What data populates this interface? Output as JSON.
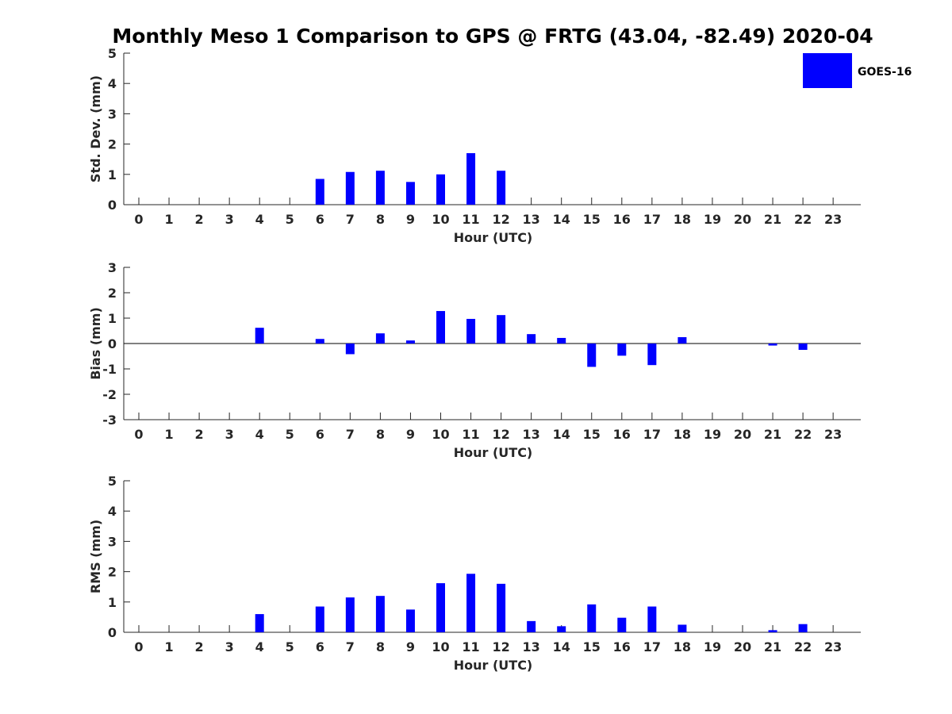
{
  "title": "Monthly Meso 1 Comparison to GPS @ FRTG (43.04, -82.49) 2020-04",
  "legend": {
    "label": "GOES-16",
    "color": "#0000ff",
    "placement": "top-right"
  },
  "chart_data": [
    {
      "type": "bar",
      "ylabel": "Std. Dev. (mm)",
      "xlabel": "Hour (UTC)",
      "ylim": [
        0,
        5
      ],
      "yticks": [
        0,
        1,
        2,
        3,
        4,
        5
      ],
      "categories": [
        "0",
        "1",
        "2",
        "3",
        "4",
        "5",
        "6",
        "7",
        "8",
        "9",
        "10",
        "11",
        "12",
        "13",
        "14",
        "15",
        "16",
        "17",
        "18",
        "19",
        "20",
        "21",
        "22",
        "23"
      ],
      "series": [
        {
          "name": "GOES-16",
          "color": "#0000ff",
          "values": [
            null,
            null,
            null,
            null,
            null,
            null,
            0.85,
            1.08,
            1.12,
            0.75,
            1.0,
            1.7,
            1.12,
            null,
            null,
            null,
            null,
            null,
            null,
            null,
            null,
            null,
            null,
            null
          ]
        }
      ]
    },
    {
      "type": "bar",
      "ylabel": "Bias (mm)",
      "xlabel": "Hour (UTC)",
      "ylim": [
        -3,
        3
      ],
      "yticks": [
        -3,
        -2,
        -1,
        0,
        1,
        2,
        3
      ],
      "categories": [
        "0",
        "1",
        "2",
        "3",
        "4",
        "5",
        "6",
        "7",
        "8",
        "9",
        "10",
        "11",
        "12",
        "13",
        "14",
        "15",
        "16",
        "17",
        "18",
        "19",
        "20",
        "21",
        "22",
        "23"
      ],
      "series": [
        {
          "name": "GOES-16",
          "color": "#0000ff",
          "values": [
            null,
            null,
            null,
            null,
            0.62,
            null,
            0.18,
            -0.42,
            0.4,
            0.12,
            1.28,
            0.97,
            1.12,
            0.37,
            0.22,
            -0.92,
            -0.48,
            -0.85,
            0.25,
            null,
            null,
            -0.08,
            -0.25,
            null
          ]
        }
      ]
    },
    {
      "type": "bar",
      "ylabel": "RMS (mm)",
      "xlabel": "Hour (UTC)",
      "ylim": [
        0,
        5
      ],
      "yticks": [
        0,
        1,
        2,
        3,
        4,
        5
      ],
      "categories": [
        "0",
        "1",
        "2",
        "3",
        "4",
        "5",
        "6",
        "7",
        "8",
        "9",
        "10",
        "11",
        "12",
        "13",
        "14",
        "15",
        "16",
        "17",
        "18",
        "19",
        "20",
        "21",
        "22",
        "23"
      ],
      "series": [
        {
          "name": "GOES-16",
          "color": "#0000ff",
          "values": [
            null,
            null,
            null,
            null,
            0.6,
            null,
            0.85,
            1.15,
            1.2,
            0.75,
            1.62,
            1.93,
            1.6,
            0.37,
            0.2,
            0.92,
            0.48,
            0.85,
            0.25,
            null,
            null,
            0.07,
            0.27,
            null
          ]
        }
      ]
    }
  ]
}
